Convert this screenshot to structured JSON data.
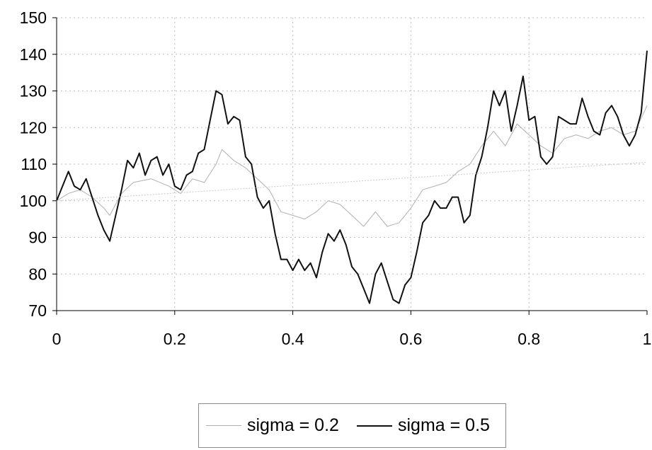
{
  "chart_data": {
    "type": "line",
    "title": "",
    "xlabel": "",
    "ylabel": "",
    "xlim": [
      0,
      1
    ],
    "ylim": [
      70,
      150
    ],
    "x_ticks": [
      0,
      0.2,
      0.4,
      0.6,
      0.8,
      1
    ],
    "x_tick_labels": [
      "0",
      "0.2",
      "0.4",
      "0.6",
      "0.8",
      "1"
    ],
    "y_ticks": [
      70,
      80,
      90,
      100,
      110,
      120,
      130,
      140,
      150
    ],
    "y_tick_labels": [
      "70",
      "80",
      "90",
      "100",
      "110",
      "120",
      "130",
      "140",
      "150"
    ],
    "grid": true,
    "legend_position": "bottom",
    "series": [
      {
        "name": "sigma = 0.2",
        "color": "#b0b0b0",
        "x": [
          0,
          0.02,
          0.04,
          0.06,
          0.08,
          0.09,
          0.11,
          0.13,
          0.16,
          0.19,
          0.21,
          0.23,
          0.25,
          0.27,
          0.28,
          0.3,
          0.32,
          0.34,
          0.36,
          0.38,
          0.4,
          0.42,
          0.44,
          0.46,
          0.48,
          0.5,
          0.52,
          0.54,
          0.56,
          0.58,
          0.6,
          0.62,
          0.64,
          0.66,
          0.68,
          0.7,
          0.72,
          0.74,
          0.76,
          0.78,
          0.8,
          0.82,
          0.84,
          0.86,
          0.88,
          0.9,
          0.92,
          0.94,
          0.96,
          0.98,
          1
        ],
        "values": [
          100,
          102,
          103,
          101,
          98,
          96,
          102,
          105,
          106,
          104,
          102,
          106,
          105,
          110,
          114,
          111,
          109,
          106,
          103,
          97,
          96,
          95,
          97,
          100,
          99,
          96,
          93,
          97,
          93,
          94,
          98,
          103,
          104,
          105,
          108,
          110,
          115,
          119,
          115,
          121,
          118,
          115,
          113,
          117,
          118,
          117,
          119,
          120,
          118,
          119,
          126
        ]
      },
      {
        "name": "sigma = 0.5",
        "color": "#111111",
        "x": [
          0,
          0.01,
          0.02,
          0.03,
          0.04,
          0.05,
          0.06,
          0.07,
          0.08,
          0.09,
          0.1,
          0.11,
          0.12,
          0.13,
          0.14,
          0.15,
          0.16,
          0.17,
          0.18,
          0.19,
          0.2,
          0.21,
          0.22,
          0.23,
          0.24,
          0.25,
          0.26,
          0.27,
          0.28,
          0.29,
          0.3,
          0.31,
          0.32,
          0.33,
          0.34,
          0.35,
          0.36,
          0.37,
          0.38,
          0.39,
          0.4,
          0.41,
          0.42,
          0.43,
          0.44,
          0.45,
          0.46,
          0.47,
          0.48,
          0.49,
          0.5,
          0.51,
          0.52,
          0.53,
          0.54,
          0.55,
          0.56,
          0.57,
          0.58,
          0.59,
          0.6,
          0.61,
          0.62,
          0.63,
          0.64,
          0.65,
          0.66,
          0.67,
          0.68,
          0.69,
          0.7,
          0.71,
          0.72,
          0.73,
          0.74,
          0.75,
          0.76,
          0.77,
          0.78,
          0.79,
          0.8,
          0.81,
          0.82,
          0.83,
          0.84,
          0.85,
          0.86,
          0.87,
          0.88,
          0.89,
          0.9,
          0.91,
          0.92,
          0.93,
          0.94,
          0.95,
          0.96,
          0.97,
          0.98,
          0.99,
          1
        ],
        "values": [
          100,
          104,
          108,
          104,
          103,
          106,
          101,
          96,
          92,
          89,
          96,
          103,
          111,
          109,
          113,
          107,
          111,
          112,
          107,
          110,
          104,
          103,
          107,
          108,
          113,
          114,
          122,
          130,
          129,
          121,
          123,
          122,
          112,
          110,
          101,
          98,
          100,
          91,
          84,
          84,
          81,
          84,
          81,
          83,
          79,
          86,
          91,
          89,
          92,
          88,
          82,
          80,
          76,
          72,
          80,
          83,
          78,
          73,
          72,
          77,
          79,
          86,
          94,
          96,
          100,
          98,
          98,
          101,
          101,
          94,
          96,
          107,
          112,
          120,
          130,
          126,
          130,
          119,
          126,
          134,
          122,
          123,
          112,
          110,
          112,
          123,
          122,
          121,
          121,
          128,
          123,
          119,
          118,
          124,
          126,
          123,
          118,
          115,
          118,
          124,
          141
        ]
      },
      {
        "name": "",
        "color": "#c8c8c8",
        "x": [
          0,
          1
        ],
        "values": [
          100,
          110.5
        ]
      }
    ]
  }
}
